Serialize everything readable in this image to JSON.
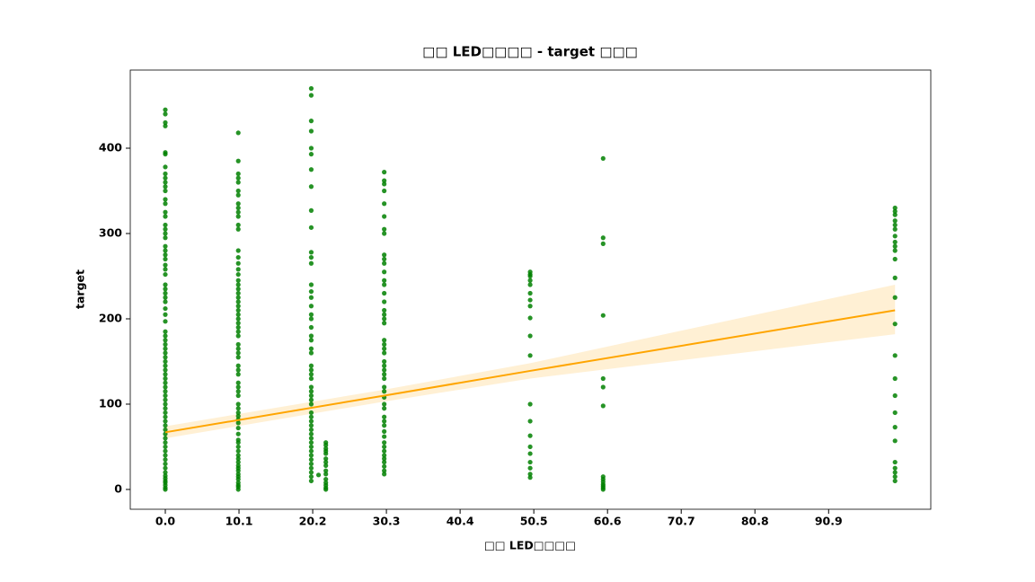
{
  "chart_data": {
    "type": "scatter",
    "title": "□□ LED□□□□ - target □□□",
    "x_label": "□□ LED□□□□",
    "y_label": "target",
    "color": "#008000",
    "xlim": [
      -4.8,
      104.9
    ],
    "ylim": [
      -23.2,
      491.6
    ],
    "xticks": [
      {
        "value": 0,
        "label": "0.0"
      },
      10.1,
      20.2,
      30.3,
      40.4,
      50.5,
      60.6,
      70.7,
      80.8,
      90.9
    ],
    "yticks": [
      0,
      100,
      200,
      300,
      400
    ],
    "series": [
      {
        "x": 0,
        "values": [
          0,
          2,
          5,
          8,
          10,
          13,
          16,
          20,
          25,
          30,
          35,
          40,
          45,
          50,
          55,
          60,
          65,
          70,
          75,
          80,
          85,
          90,
          95,
          100,
          105,
          110,
          115,
          120,
          125,
          130,
          135,
          140,
          145,
          150,
          155,
          160,
          165,
          170,
          175,
          180,
          185,
          197,
          205,
          212,
          220,
          225,
          230,
          235,
          240,
          252,
          258,
          263,
          270,
          275,
          280,
          285,
          295,
          300,
          305,
          310,
          320,
          325,
          335,
          340,
          350,
          355,
          360,
          365,
          370,
          378,
          393,
          395,
          426,
          430,
          440,
          445
        ]
      },
      {
        "x": 10,
        "values": [
          0,
          3,
          5,
          8,
          12,
          15,
          18,
          22,
          25,
          28,
          32,
          36,
          40,
          45,
          50,
          55,
          58,
          65,
          72,
          78,
          82,
          86,
          90,
          95,
          100,
          110,
          115,
          120,
          125,
          135,
          140,
          145,
          155,
          160,
          165,
          170,
          180,
          185,
          190,
          195,
          200,
          205,
          210,
          215,
          220,
          225,
          230,
          235,
          240,
          245,
          252,
          258,
          265,
          272,
          280,
          305,
          310,
          320,
          325,
          330,
          335,
          345,
          350,
          360,
          365,
          370,
          385,
          418
        ]
      },
      {
        "x": 20,
        "values": [
          10,
          15,
          20,
          25,
          30,
          35,
          40,
          45,
          50,
          55,
          60,
          65,
          70,
          75,
          80,
          85,
          90,
          100,
          105,
          110,
          115,
          120,
          130,
          135,
          140,
          145,
          160,
          165,
          175,
          180,
          190,
          200,
          205,
          215,
          225,
          232,
          240,
          265,
          272,
          278,
          307,
          327,
          355,
          375,
          393,
          400,
          420,
          432,
          462,
          470
        ]
      },
      {
        "x": 21,
        "values": [
          17
        ]
      },
      {
        "x": 22,
        "values": [
          0,
          2,
          5,
          8,
          12,
          18,
          22,
          28,
          32,
          36,
          42,
          45,
          48,
          52,
          55
        ]
      },
      {
        "x": 30,
        "values": [
          18,
          22,
          27,
          32,
          36,
          40,
          45,
          50,
          55,
          62,
          68,
          75,
          80,
          85,
          95,
          100,
          108,
          115,
          120,
          130,
          135,
          140,
          145,
          150,
          160,
          165,
          170,
          175,
          195,
          200,
          205,
          210,
          220,
          230,
          240,
          245,
          255,
          265,
          270,
          275,
          300,
          305,
          320,
          335,
          350,
          358,
          362,
          372
        ]
      },
      {
        "x": 50,
        "values": [
          14,
          18,
          25,
          32,
          42,
          50,
          63,
          80,
          100,
          157,
          180,
          201,
          215,
          222,
          230,
          240,
          245,
          250,
          252,
          255
        ]
      },
      {
        "x": 60,
        "values": [
          0,
          2,
          4,
          6,
          9,
          12,
          15,
          98,
          120,
          130,
          204,
          288,
          295,
          388
        ]
      },
      {
        "x": 100,
        "values": [
          10,
          15,
          20,
          25,
          32,
          57,
          73,
          90,
          110,
          130,
          157,
          194,
          225,
          248,
          270,
          280,
          285,
          290,
          297,
          305,
          310,
          315,
          322,
          326,
          330
        ]
      }
    ],
    "fit": {
      "color": "#ffa500",
      "x": [
        0,
        30,
        50,
        100
      ],
      "y": [
        67,
        110,
        139,
        210
      ],
      "lower": [
        60,
        103,
        130,
        182
      ],
      "upper": [
        74,
        117,
        148,
        240
      ]
    }
  }
}
